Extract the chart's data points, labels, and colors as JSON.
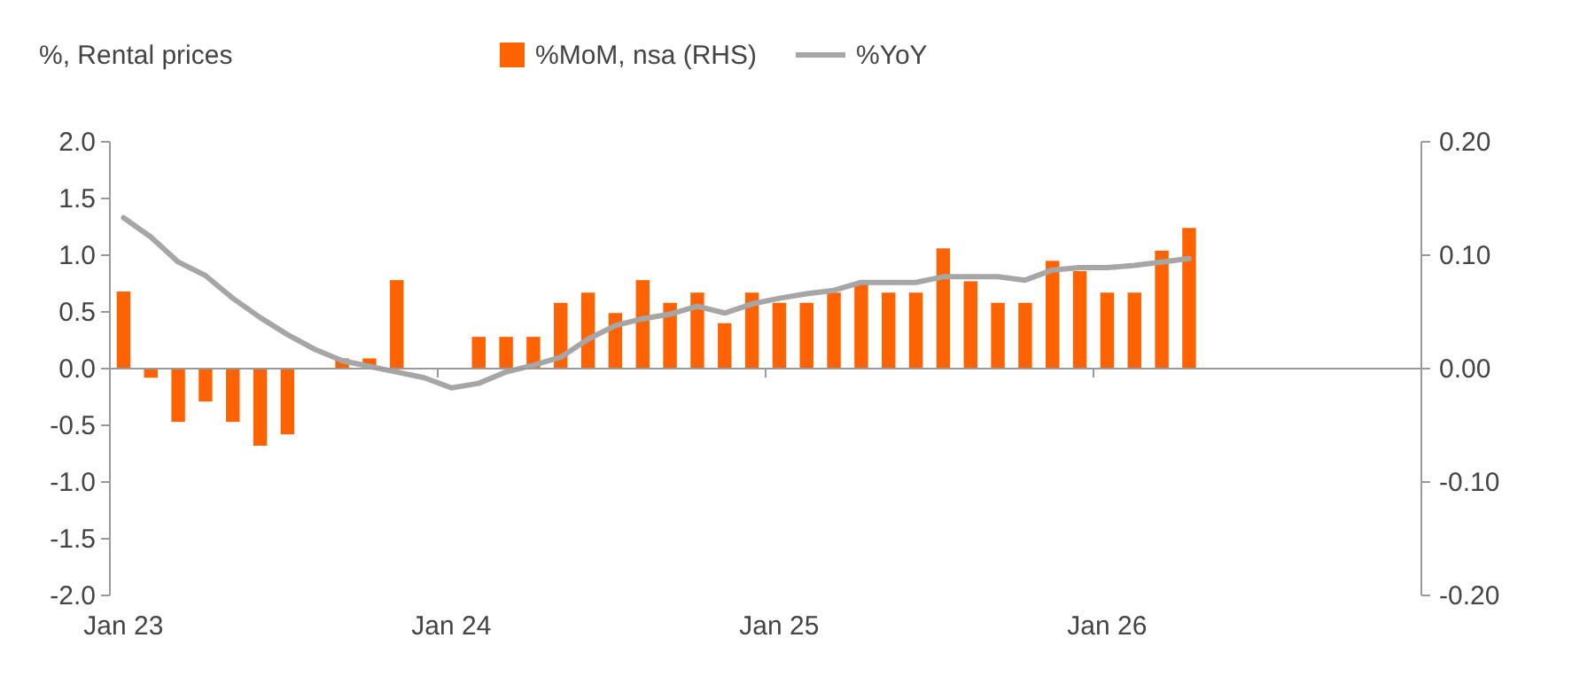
{
  "chart_data": {
    "type": "bar",
    "ylabel": "%, Rental prices",
    "legend": "top",
    "categories": [
      "Jan 23",
      null,
      null,
      null,
      null,
      null,
      null,
      null,
      null,
      null,
      null,
      null,
      "Jan 24",
      null,
      null,
      null,
      null,
      null,
      null,
      null,
      null,
      null,
      null,
      null,
      "Jan 25",
      null,
      null,
      null,
      null,
      null,
      null,
      null,
      null,
      null,
      null,
      null,
      "Jan 26",
      null,
      null,
      null,
      null,
      null,
      null,
      null,
      null,
      null,
      null,
      null
    ],
    "series": [
      {
        "name": "%MoM, nsa (RHS)",
        "axis": "y2",
        "color": "#ff6200",
        "values": [
          0.068,
          -0.008,
          -0.047,
          -0.029,
          -0.047,
          -0.068,
          -0.058,
          null,
          0.009,
          0.009,
          0.078,
          null,
          null,
          0.028,
          0.028,
          0.028,
          0.058,
          0.067,
          0.049,
          0.078,
          0.058,
          0.067,
          0.04,
          0.067,
          0.058,
          0.058,
          0.067,
          0.075,
          0.067,
          0.067,
          0.106,
          0.077,
          0.058,
          0.058,
          0.095,
          0.086,
          0.067,
          0.067,
          0.104,
          0.124,
          null,
          null,
          null,
          null,
          null,
          null,
          null,
          null
        ]
      },
      {
        "name": "%YoY",
        "type": "line",
        "color": "#a6a6a6",
        "values": [
          1.33,
          1.16,
          0.94,
          0.82,
          0.62,
          0.45,
          0.3,
          0.17,
          0.07,
          0.02,
          -0.03,
          -0.08,
          -0.17,
          -0.13,
          -0.03,
          0.03,
          0.1,
          0.26,
          0.38,
          0.44,
          0.48,
          0.55,
          0.49,
          0.57,
          0.62,
          0.66,
          0.69,
          0.76,
          0.76,
          0.76,
          0.81,
          0.81,
          0.81,
          0.78,
          0.87,
          0.89,
          0.89,
          0.91,
          0.94,
          0.97,
          null,
          null,
          null,
          null,
          null,
          null,
          null,
          null
        ]
      }
    ],
    "ylim": [
      -2,
      2
    ],
    "yticks": [
      {
        "value": -2,
        "label": "-2.0"
      },
      {
        "value": -1.5,
        "label": "-1.5"
      },
      {
        "value": -1,
        "label": "-1.0"
      },
      {
        "value": -0.5,
        "label": "-0.5"
      },
      {
        "value": 0,
        "label": "0.0"
      },
      {
        "value": 0.5,
        "label": "0.5"
      },
      {
        "value": 1,
        "label": "1.0"
      },
      {
        "value": 1.5,
        "label": "1.5"
      },
      {
        "value": 2,
        "label": "2.0"
      }
    ],
    "y2lim": [
      -0.2,
      0.2
    ],
    "y2ticks": [
      {
        "value": -0.2,
        "label": "-0.20"
      },
      {
        "value": -0.1,
        "label": "-0.10"
      },
      {
        "value": 0,
        "label": "0.00"
      },
      {
        "value": 0.1,
        "label": "0.10"
      },
      {
        "value": 0.2,
        "label": "0.20"
      }
    ]
  }
}
